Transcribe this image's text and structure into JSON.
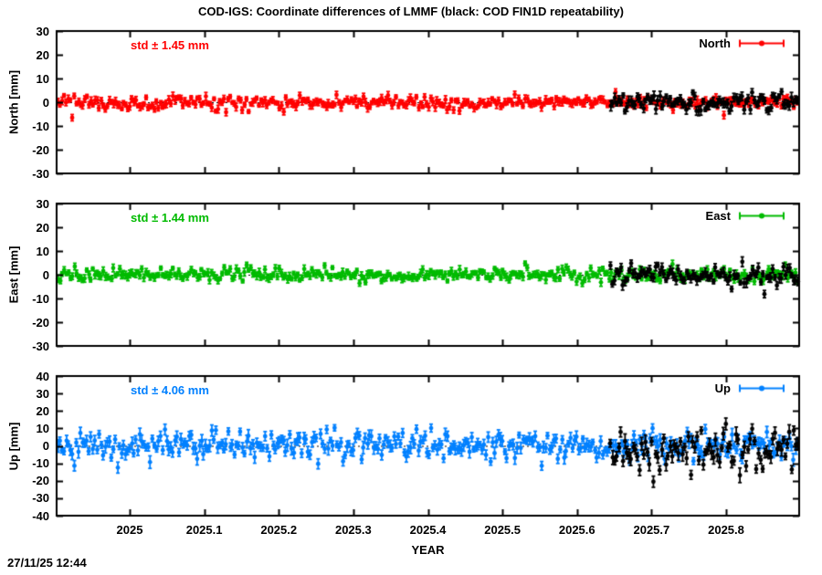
{
  "app": {
    "timestamp": "27/11/25 12:44"
  },
  "chart_data": {
    "type": "scatter",
    "title": "COD-IGS: Coordinate differences of LMMF (black: COD FIN1D repeatability)",
    "xlabel": "YEAR",
    "x_range": [
      2024.902,
      2025.898
    ],
    "x_tick_values": [
      2025,
      2025.1,
      2025.2,
      2025.3,
      2025.4,
      2025.5,
      2025.6,
      2025.7,
      2025.8
    ],
    "x_tick_labels": [
      "2025",
      "2025.1",
      "2025.2",
      "2025.3",
      "2025.4",
      "2025.5",
      "2025.6",
      "2025.7",
      "2025.8"
    ],
    "grid": "off",
    "zero_line": "dotted",
    "legend_position": "top-right-inside",
    "black_overlay_range": [
      2025.645,
      2025.896
    ],
    "panels": [
      {
        "id": "north",
        "ylabel": "North [mm]",
        "ylim": [
          -30,
          30
        ],
        "ytick_values": [
          30,
          20,
          10,
          0,
          -10,
          -20,
          -30
        ],
        "ytick_labels": [
          "30",
          "20",
          "10",
          "0",
          "-10",
          "-20",
          "-30"
        ],
        "std_label": "std ± 1.45 mm",
        "std_mm": 1.45,
        "legend_label": "North",
        "color": "#ff0000",
        "series": [
          {
            "name": "North COD-IGS difference",
            "color": "#ff0000",
            "x_start": 2024.904,
            "x_end": 2025.896,
            "points": 362,
            "mean": 0,
            "std": 1.45,
            "err_bar": 1.2,
            "seed": 101
          },
          {
            "name": "North COD FIN1D repeatability",
            "color": "#000000",
            "x_start": 2025.645,
            "x_end": 2025.896,
            "points": 92,
            "mean": 0,
            "std": 1.9,
            "err_bar": 1.5,
            "seed": 102
          }
        ]
      },
      {
        "id": "east",
        "ylabel": "East [mm]",
        "ylim": [
          -30,
          30
        ],
        "ytick_values": [
          30,
          20,
          10,
          0,
          -10,
          -20,
          -30
        ],
        "ytick_labels": [
          "30",
          "20",
          "10",
          "0",
          "-10",
          "-20",
          "-30"
        ],
        "std_label": "std ± 1.44 mm",
        "std_mm": 1.44,
        "legend_label": "East",
        "color": "#00bb00",
        "series": [
          {
            "name": "East COD-IGS difference",
            "color": "#00bb00",
            "x_start": 2024.904,
            "x_end": 2025.896,
            "points": 362,
            "mean": 0,
            "std": 1.44,
            "err_bar": 1.2,
            "seed": 201
          },
          {
            "name": "East COD FIN1D repeatability",
            "color": "#000000",
            "x_start": 2025.645,
            "x_end": 2025.896,
            "points": 92,
            "mean": -0.5,
            "std": 2.2,
            "err_bar": 1.5,
            "seed": 202
          }
        ]
      },
      {
        "id": "up",
        "ylabel": "Up [mm]",
        "ylim": [
          -40,
          40
        ],
        "ytick_values": [
          40,
          30,
          20,
          10,
          0,
          -10,
          -20,
          -30,
          -40
        ],
        "ytick_labels": [
          "40",
          "30",
          "20",
          "10",
          "0",
          "-10",
          "-20",
          "-30",
          "-40"
        ],
        "std_label": "std ± 4.06 mm",
        "std_mm": 4.06,
        "legend_label": "Up",
        "color": "#0080ff",
        "series": [
          {
            "name": "Up COD-IGS difference",
            "color": "#0080ff",
            "x_start": 2024.904,
            "x_end": 2025.896,
            "points": 362,
            "mean": 0.5,
            "std": 4.06,
            "err_bar": 2.6,
            "seed": 301
          },
          {
            "name": "Up COD FIN1D repeatability",
            "color": "#000000",
            "x_start": 2025.645,
            "x_end": 2025.896,
            "points": 92,
            "mean": -2,
            "std": 5.8,
            "err_bar": 3.0,
            "seed": 302
          }
        ]
      }
    ]
  }
}
